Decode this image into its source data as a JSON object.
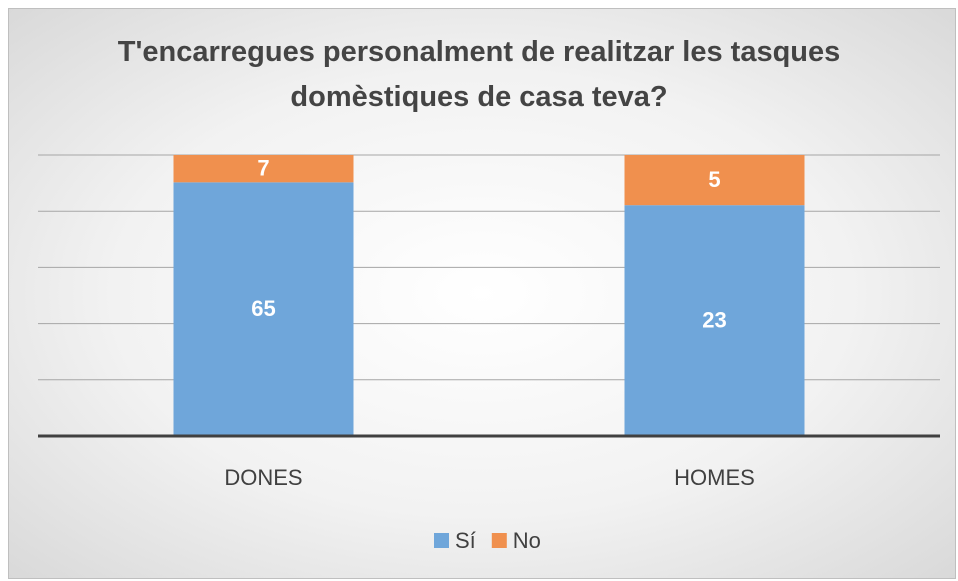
{
  "chart_data": {
    "type": "bar",
    "stacking": "percent",
    "title": "T'encarregues personalment de realitzar les tasques domèstiques de casa teva?",
    "categories": [
      "DONES",
      "HOMES"
    ],
    "series": [
      {
        "name": "Sí",
        "color": "#6fa6da",
        "values": [
          65,
          23
        ]
      },
      {
        "name": "No",
        "color": "#f0904e",
        "values": [
          7,
          5
        ]
      }
    ],
    "ylim": [
      0,
      100
    ],
    "yticks": [
      0,
      20,
      40,
      60,
      80,
      100
    ],
    "ytick_labels": false,
    "grid": true,
    "legend": "bottom"
  }
}
